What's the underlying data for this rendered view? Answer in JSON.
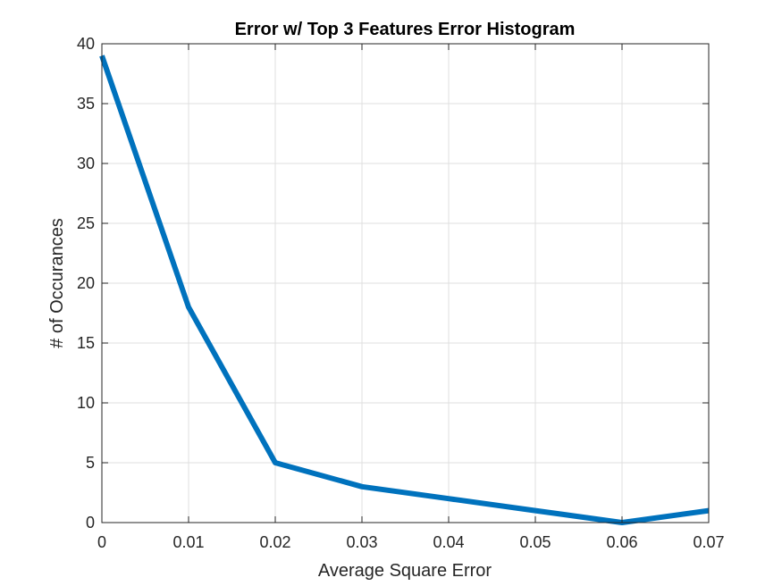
{
  "chart_data": {
    "type": "line",
    "title": "Error w/ Top 3 Features Error Histogram",
    "xlabel": "Average Square Error",
    "ylabel": "# of Occurances",
    "xlim": [
      0,
      0.07
    ],
    "ylim": [
      0,
      40
    ],
    "grid": true,
    "legend": "none",
    "x": [
      0,
      0.01,
      0.02,
      0.03,
      0.04,
      0.05,
      0.06,
      0.07
    ],
    "series": [
      {
        "values": [
          39,
          18,
          5,
          3,
          2,
          1,
          0,
          1
        ],
        "color": "#0072BD"
      }
    ],
    "xticks": [
      0,
      0.01,
      0.02,
      0.03,
      0.04,
      0.05,
      0.06,
      0.07
    ],
    "xtick_labels": [
      "0",
      "0.01",
      "0.02",
      "0.03",
      "0.04",
      "0.05",
      "0.06",
      "0.07"
    ],
    "yticks": [
      0,
      5,
      10,
      15,
      20,
      25,
      30,
      35,
      40
    ],
    "ytick_labels": [
      "0",
      "5",
      "10",
      "15",
      "20",
      "25",
      "30",
      "35",
      "40"
    ]
  }
}
